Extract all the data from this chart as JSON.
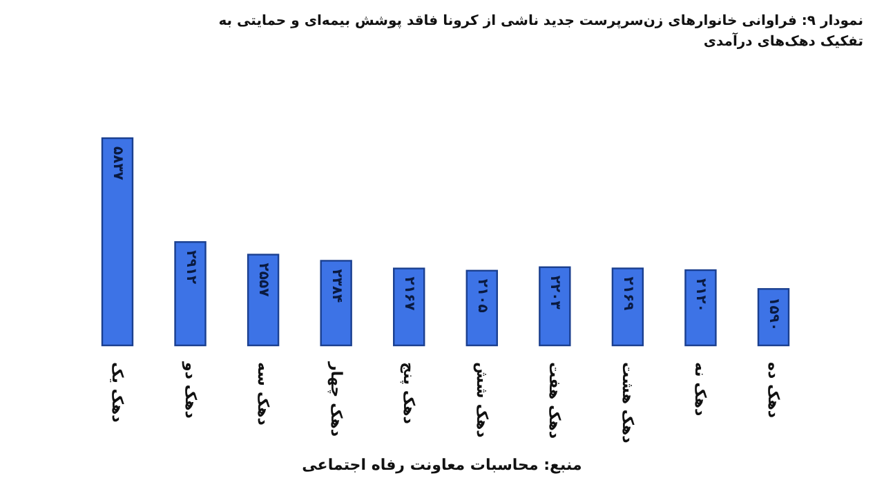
{
  "chart_data": {
    "type": "bar",
    "title": "نمودار ۹: فراوانی خانوارهای زن‌سرپرست جدید ناشی از کرونا فاقد پوشش بیمه‌ای و حمایتی به تفکیک دهک‌های درآمدی",
    "categories": [
      "دهک یک",
      "دهک دو",
      "دهک سه",
      "دهک چهار",
      "دهک پنج",
      "دهک شش",
      "دهک هفت",
      "دهک هشت",
      "دهک نه",
      "دهک ده"
    ],
    "values": [
      5837,
      2912,
      2557,
      2384,
      2167,
      2105,
      2203,
      2169,
      2120,
      1590
    ],
    "value_labels": [
      "۵۸۳۷",
      "۲۹۱۲",
      "۲۵۵۷",
      "۲۳۸۴",
      "۲۱۶۷",
      "۲۱۰۵",
      "۲۲۰۳",
      "۲۱۶۹",
      "۲۱۲۰",
      "۱۵۹۰"
    ],
    "color": "#3d73e6",
    "annotations": [
      "منبع: محاسبات معاونت رفاه اجتماعی"
    ]
  }
}
